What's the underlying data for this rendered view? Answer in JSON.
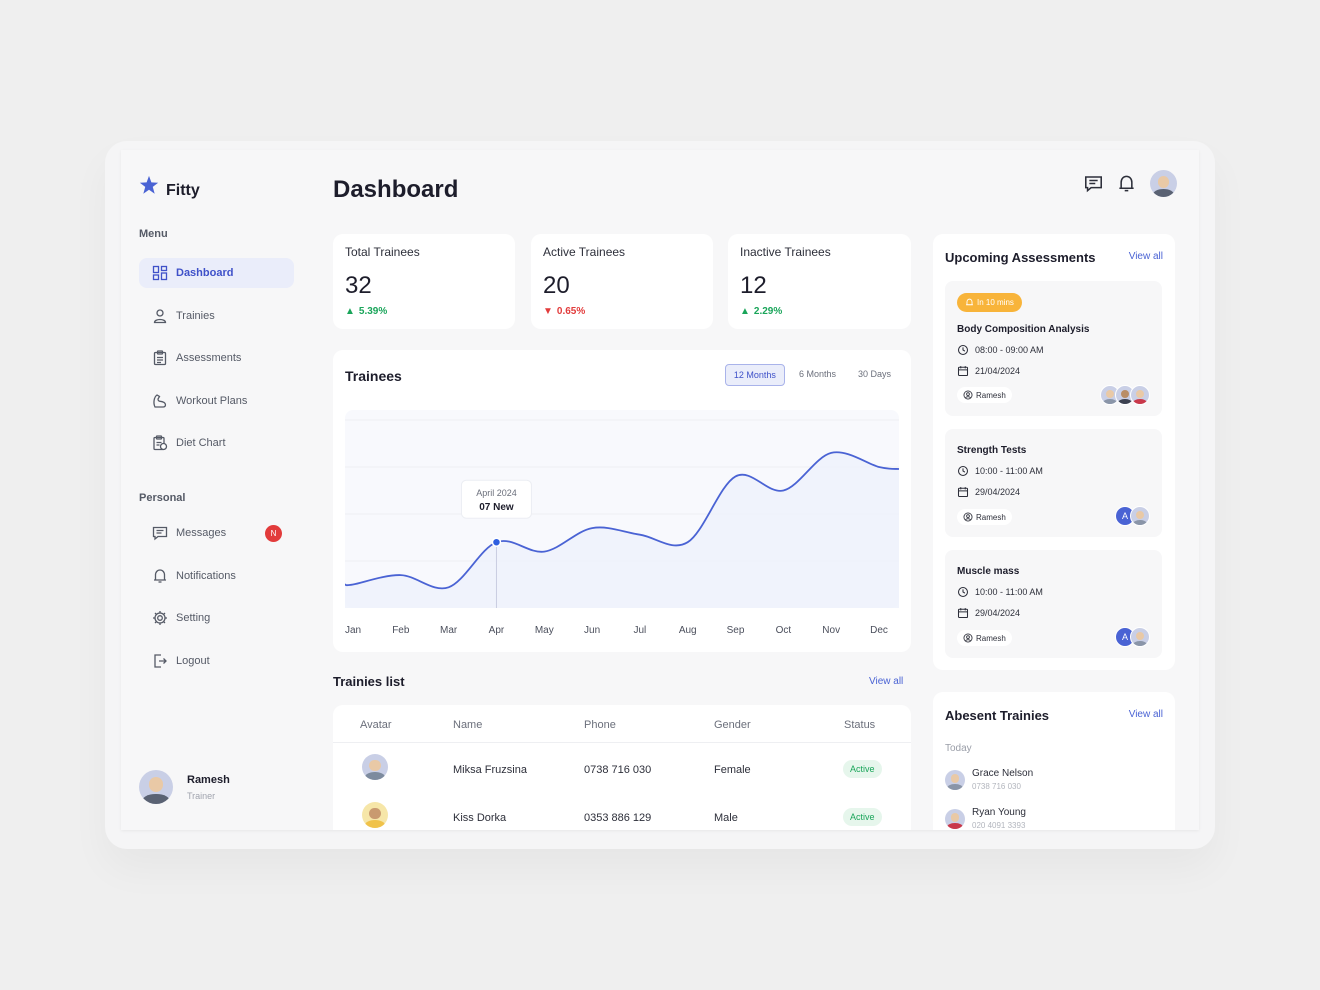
{
  "brand": {
    "name": "Fitty",
    "accent": "#4a63d4"
  },
  "sidebar": {
    "menu_label": "Menu",
    "menu_items": [
      {
        "label": "Dashboard",
        "icon": "dashboard-icon",
        "active": true
      },
      {
        "label": "Trainies",
        "icon": "user-icon"
      },
      {
        "label": "Assessments",
        "icon": "clipboard-icon"
      },
      {
        "label": "Workout Plans",
        "icon": "muscle-icon"
      },
      {
        "label": "Diet Chart",
        "icon": "diet-chart-icon"
      }
    ],
    "personal_label": "Personal",
    "personal_items": [
      {
        "label": "Messages",
        "icon": "message-icon",
        "badge": "N"
      },
      {
        "label": "Notifications",
        "icon": "bell-icon"
      },
      {
        "label": "Setting",
        "icon": "gear-icon"
      },
      {
        "label": "Logout",
        "icon": "logout-icon"
      }
    ],
    "user": {
      "name": "Ramesh",
      "role": "Trainer"
    }
  },
  "header": {
    "title": "Dashboard"
  },
  "stats": [
    {
      "label": "Total Trainees",
      "value": "32",
      "change": "5.39%",
      "direction": "up"
    },
    {
      "label": "Active Trainees",
      "value": "20",
      "change": "0.65%",
      "direction": "down"
    },
    {
      "label": "Inactive Trainees",
      "value": "12",
      "change": "2.29%",
      "direction": "up"
    }
  ],
  "trainees_chart": {
    "title": "Trainees",
    "ranges": [
      "12 Months",
      "6 Months",
      "30 Days"
    ],
    "active_range": "12 Months",
    "tooltip": {
      "period": "April 2024",
      "value": "07 New"
    }
  },
  "chart_data": {
    "type": "line",
    "title": "Trainees",
    "categories": [
      "Jan",
      "Feb",
      "Mar",
      "Apr",
      "May",
      "Jun",
      "Jul",
      "Aug",
      "Sep",
      "Oct",
      "Nov",
      "Dec"
    ],
    "series": [
      {
        "values": [
          2.5,
          3.5,
          2.2,
          7,
          6,
          8.5,
          7.8,
          7,
          14,
          12.5,
          16.5,
          15
        ]
      }
    ],
    "ylim": [
      0,
      20
    ],
    "grid": true,
    "highlight": {
      "category": "Apr",
      "label": "April 2024",
      "value": "07 New"
    }
  },
  "trainees_list": {
    "title": "Trainies list",
    "view_all": "View all",
    "columns": [
      "Avatar",
      "Name",
      "Phone",
      "Gender",
      "Status"
    ],
    "rows": [
      {
        "name": "Miksa Fruzsina",
        "phone": "0738 716 030",
        "gender": "Female",
        "status": "Active"
      },
      {
        "name": "Kiss Dorka",
        "phone": "0353 886 129",
        "gender": "Male",
        "status": "Active"
      }
    ]
  },
  "assessments": {
    "title": "Upcoming Assessments",
    "view_all": "View all",
    "items": [
      {
        "badge": "In 10 mins",
        "title": "Body Composition Analysis",
        "time": "08:00 - 09:00 AM",
        "date": "21/04/2024",
        "trainer": "Ramesh"
      },
      {
        "title": "Strength Tests",
        "time": "10:00 - 11:00 AM",
        "date": "29/04/2024",
        "trainer": "Ramesh",
        "letter": "A"
      },
      {
        "title": "Muscle mass",
        "time": "10:00 - 11:00 AM",
        "date": "29/04/2024",
        "trainer": "Ramesh",
        "letter": "A"
      }
    ]
  },
  "absent": {
    "title": "Abesent Trainies",
    "view_all": "View all",
    "day": "Today",
    "items": [
      {
        "name": "Grace Nelson",
        "phone": "0738 716 030"
      },
      {
        "name": "Ryan Young",
        "phone": "020 4091 3393"
      }
    ]
  }
}
